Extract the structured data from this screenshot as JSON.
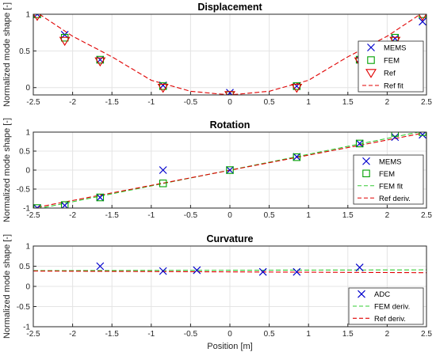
{
  "chart_data": [
    {
      "type": "scatter",
      "title": "Displacement",
      "xlabel": "",
      "ylabel": "",
      "xlim": [
        -2.5,
        2.5
      ],
      "ylim": [
        -0.1,
        1
      ],
      "xticks": [
        "-2.5",
        "-2",
        "-1.5",
        "-1",
        "-0.5",
        "0",
        "0.5",
        "1",
        "1.5",
        "2",
        "2.5"
      ],
      "yticks": [
        "0",
        "0.5",
        "1"
      ],
      "grid": true,
      "legend_position": "right",
      "series": [
        {
          "name": "MEMS",
          "marker": "x",
          "color": "#0000cc",
          "x": [
            -2.45,
            -2.1,
            -1.65,
            -0.85,
            0,
            0.85,
            1.65,
            2.1,
            2.45
          ],
          "y": [
            1.0,
            0.72,
            0.38,
            0.03,
            -0.07,
            0.02,
            0.38,
            0.67,
            0.9
          ]
        },
        {
          "name": "FEM",
          "marker": "square",
          "color": "#00a000",
          "x": [
            -2.45,
            -2.1,
            -1.65,
            -0.85,
            0,
            0.85,
            1.65,
            2.1,
            2.45
          ],
          "y": [
            1.0,
            0.68,
            0.38,
            0.02,
            -0.1,
            0.02,
            0.38,
            0.68,
            1.0
          ]
        },
        {
          "name": "Ref",
          "marker": "triangle-down",
          "color": "#e00000",
          "x": [
            -2.45,
            -2.1,
            -1.65,
            -0.85,
            0,
            0.85,
            1.65,
            2.1,
            2.45
          ],
          "y": [
            0.98,
            0.64,
            0.36,
            0.0,
            -0.1,
            0.0,
            0.36,
            0.64,
            0.98
          ]
        },
        {
          "name": "Ref fit",
          "marker": "dashed-line",
          "color": "#e00000",
          "x": [
            -2.45,
            -2,
            -1.5,
            -1,
            -0.5,
            0,
            0.5,
            1,
            1.5,
            2,
            2.45
          ],
          "y": [
            1.02,
            0.7,
            0.42,
            0.1,
            -0.05,
            -0.1,
            -0.05,
            0.1,
            0.42,
            0.7,
            1.02
          ]
        }
      ]
    },
    {
      "type": "scatter",
      "title": "Rotation",
      "xlabel": "",
      "ylabel": "",
      "xlim": [
        -2.5,
        2.5
      ],
      "ylim": [
        -1,
        1
      ],
      "xticks": [
        "-2.5",
        "-2",
        "-1.5",
        "-1",
        "-0.5",
        "0",
        "0.5",
        "1",
        "1.5",
        "2",
        "2.5"
      ],
      "yticks": [
        "-1",
        "-0.5",
        "0",
        "0.5",
        "1"
      ],
      "grid": true,
      "legend_position": "right",
      "series": [
        {
          "name": "MEMS",
          "marker": "x",
          "color": "#0000cc",
          "x": [
            -2.45,
            -2.1,
            -1.65,
            -0.85,
            0,
            0.85,
            1.65,
            2.1,
            2.45
          ],
          "y": [
            -1.0,
            -0.93,
            -0.72,
            0.0,
            0.0,
            0.35,
            0.7,
            0.87,
            0.93
          ]
        },
        {
          "name": "FEM",
          "marker": "square",
          "color": "#00a000",
          "x": [
            -2.45,
            -2.1,
            -1.65,
            -0.85,
            0,
            0.85,
            1.65,
            2.1,
            2.45
          ],
          "y": [
            -1.0,
            -0.92,
            -0.72,
            -0.35,
            0.0,
            0.34,
            0.7,
            0.98,
            1.0
          ]
        },
        {
          "name": "FEM fit",
          "marker": "dashed-line",
          "color": "#33cc33",
          "x": [
            -2.45,
            2.45
          ],
          "y": [
            -1.02,
            1.02
          ]
        },
        {
          "name": "Ref deriv.",
          "marker": "dashed-line",
          "color": "#e00000",
          "x": [
            -2.45,
            2.45
          ],
          "y": [
            -0.98,
            0.97
          ]
        }
      ]
    },
    {
      "type": "scatter",
      "title": "Curvature",
      "xlabel": "Position [m]",
      "ylabel": "",
      "xlim": [
        -2.5,
        2.5
      ],
      "ylim": [
        -1,
        1
      ],
      "xticks": [
        "-2.5",
        "-2",
        "-1.5",
        "-1",
        "-0.5",
        "0",
        "0.5",
        "1",
        "1.5",
        "2",
        "2.5"
      ],
      "yticks": [
        "-1",
        "-0.5",
        "0",
        "0.5",
        "1"
      ],
      "grid": true,
      "legend_position": "bottom-right",
      "series": [
        {
          "name": "ADC",
          "marker": "x",
          "color": "#0000cc",
          "x": [
            -1.65,
            -0.85,
            -0.42,
            0.42,
            0.85,
            1.65
          ],
          "y": [
            0.5,
            0.38,
            0.4,
            0.36,
            0.36,
            0.47
          ]
        },
        {
          "name": "FEM deriv.",
          "marker": "dashed-line",
          "color": "#33cc33",
          "x": [
            -2.5,
            2.5
          ],
          "y": [
            0.39,
            0.41
          ]
        },
        {
          "name": "Ref deriv.",
          "marker": "dashed-line",
          "color": "#e00000",
          "x": [
            -2.5,
            2.5
          ],
          "y": [
            0.38,
            0.34
          ]
        }
      ]
    }
  ],
  "shared_ylabel": "Normalized mode shape [-]",
  "colors": {
    "mems": "#0000cc",
    "fem": "#00a000",
    "ref": "#e00000",
    "femfit": "#33cc33",
    "grid": "#e4e4e4",
    "axis": "#262626"
  }
}
